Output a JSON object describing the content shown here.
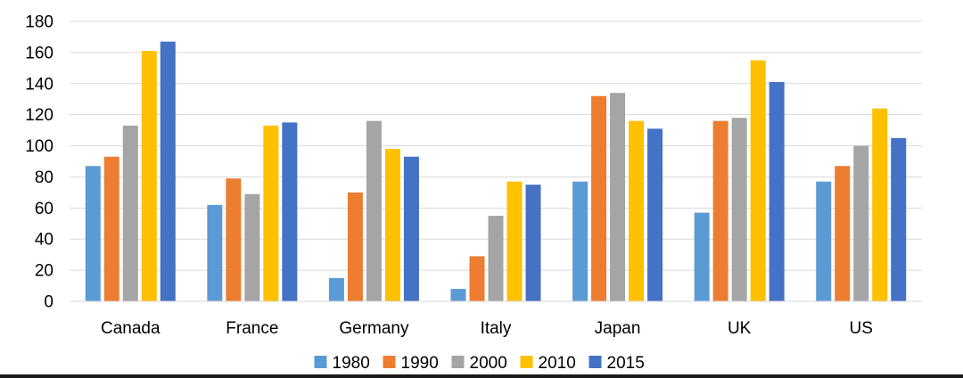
{
  "chart_data": {
    "type": "bar",
    "categories": [
      "Canada",
      "France",
      "Germany",
      "Italy",
      "Japan",
      "UK",
      "US"
    ],
    "series": [
      {
        "name": "1980",
        "color": "#5B9BD5",
        "values": [
          87,
          62,
          15,
          8,
          77,
          57,
          77
        ]
      },
      {
        "name": "1990",
        "color": "#ED7D31",
        "values": [
          93,
          79,
          70,
          29,
          132,
          116,
          87
        ]
      },
      {
        "name": "2000",
        "color": "#A5A5A5",
        "values": [
          113,
          69,
          116,
          55,
          134,
          118,
          100
        ]
      },
      {
        "name": "2010",
        "color": "#FFC000",
        "values": [
          161,
          113,
          98,
          77,
          116,
          155,
          124
        ]
      },
      {
        "name": "2015",
        "color": "#4472C4",
        "values": [
          167,
          115,
          93,
          75,
          111,
          141,
          105
        ]
      }
    ],
    "title": "",
    "xlabel": "",
    "ylabel": "",
    "ylim": [
      0,
      180
    ],
    "yticks": [
      0,
      20,
      40,
      60,
      80,
      100,
      120,
      140,
      160,
      180
    ],
    "grid": true,
    "legend_position": "bottom"
  }
}
